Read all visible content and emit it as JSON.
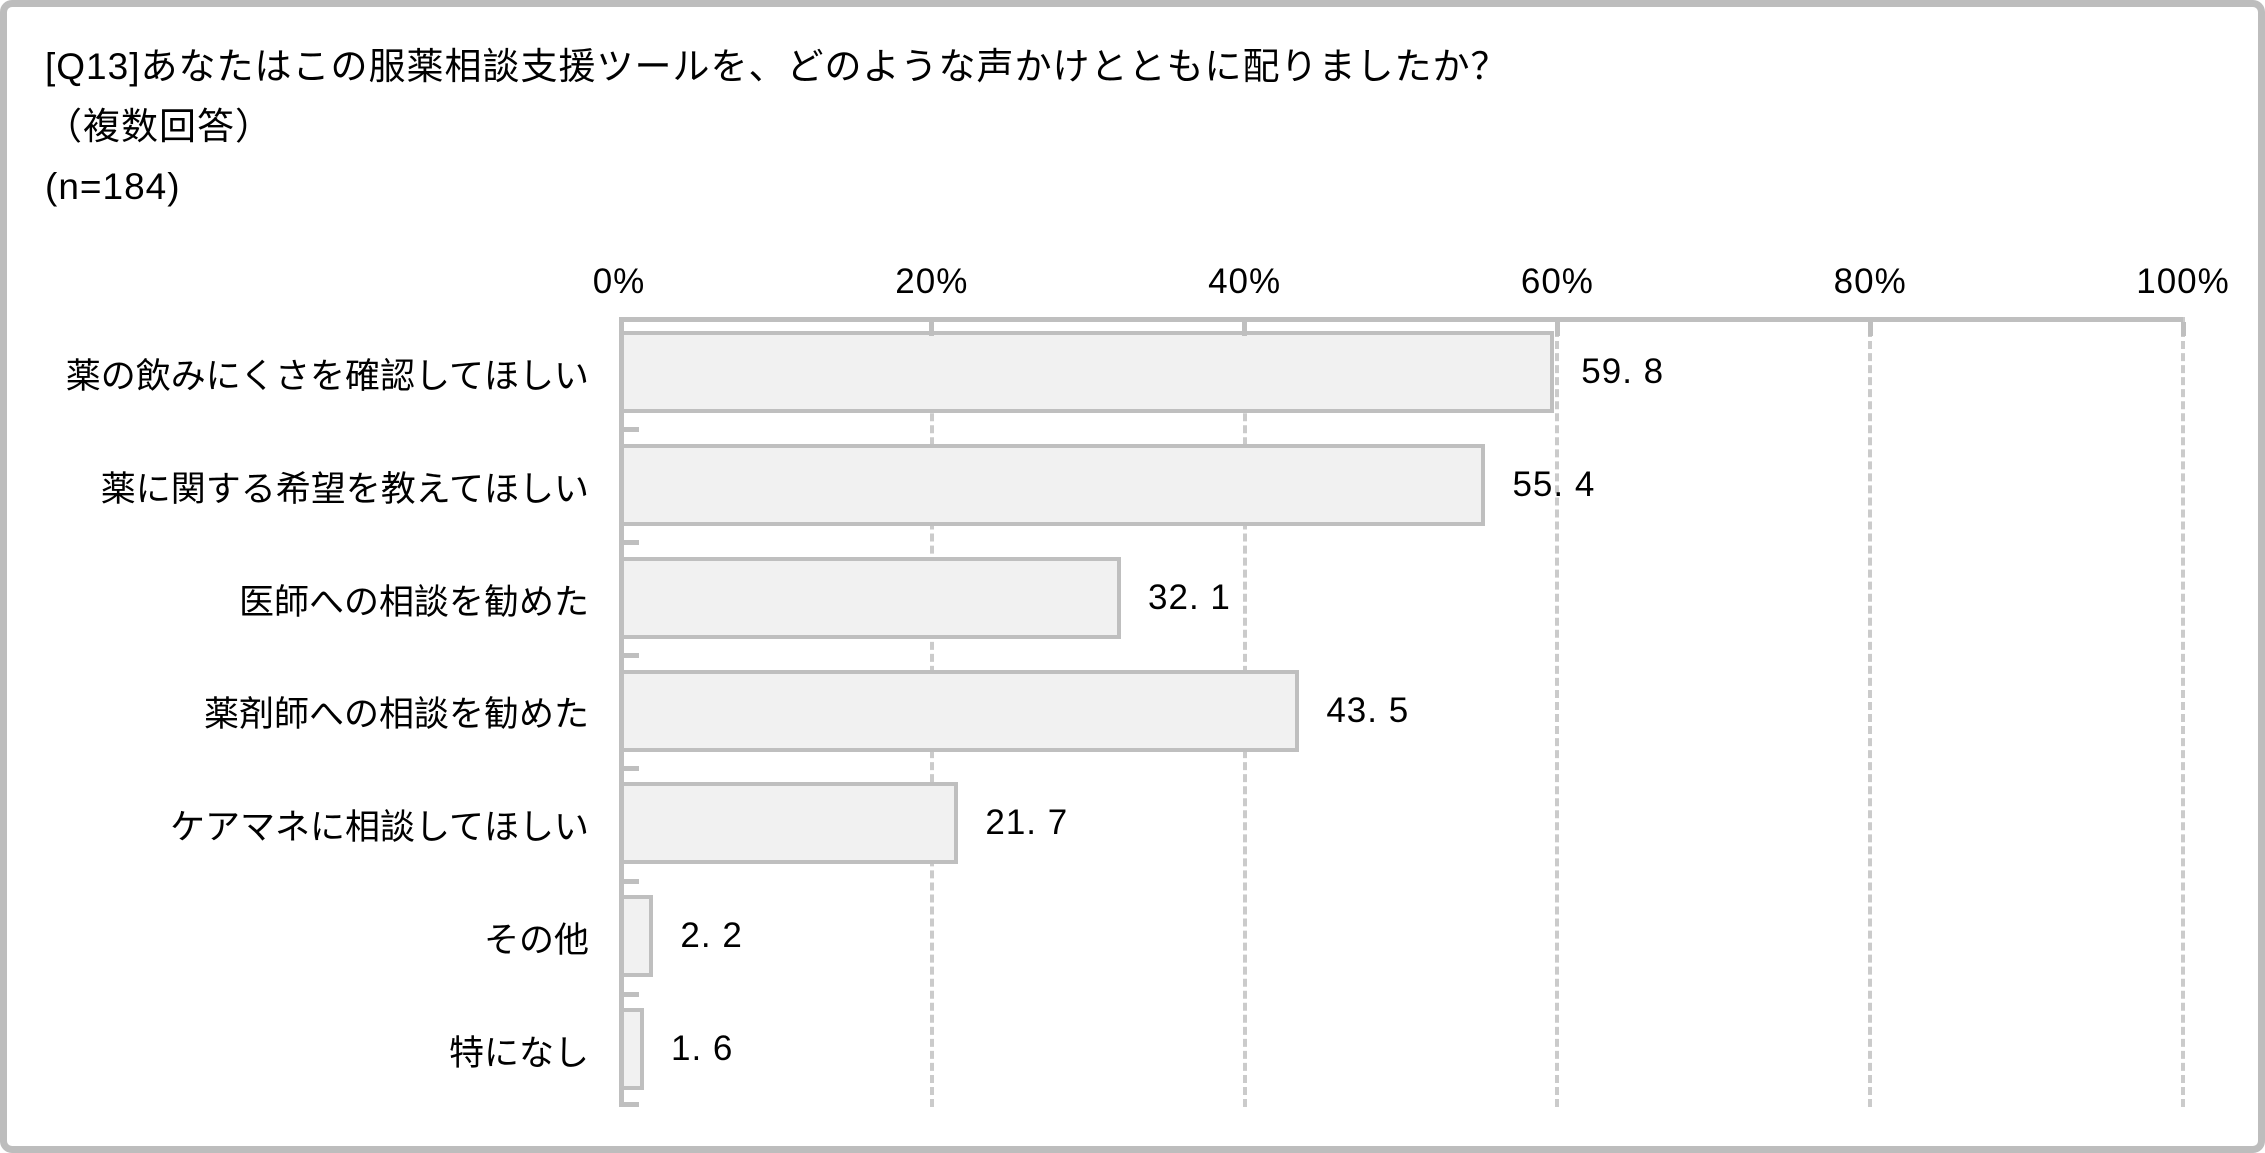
{
  "title": {
    "line1": "[Q13]あなたはこの服薬相談支援ツールを、どのような声かけとともに配りましたか？",
    "line2": "（複数回答）",
    "line3": "(n=184)"
  },
  "chart_data": {
    "type": "bar",
    "orientation": "horizontal",
    "title": "[Q13]あなたはこの服薬相談支援ツールを、どのような声かけとともに配りましたか？（複数回答）(n=184)",
    "n": 184,
    "categories": [
      "薬の飲みにくさを確認してほしい",
      "薬に関する希望を教えてほしい",
      "医師への相談を勧めた",
      "薬剤師への相談を勧めた",
      "ケアマネに相談してほしい",
      "その他",
      "特になし"
    ],
    "values": [
      59.8,
      55.4,
      32.1,
      43.5,
      21.7,
      2.2,
      1.6
    ],
    "value_labels": [
      "59. 8",
      "55. 4",
      "32. 1",
      "43. 5",
      "21. 7",
      "2. 2",
      "1. 6"
    ],
    "x_axis": {
      "position": "top",
      "min": 0,
      "max": 100,
      "tick_values": [
        0,
        20,
        40,
        60,
        80,
        100
      ],
      "tick_labels": [
        "0%",
        "20%",
        "40%",
        "60%",
        "80%",
        "100%"
      ]
    },
    "grid": {
      "vertical_dashed": true
    },
    "legend": "none",
    "colors": {
      "bar_fill": "#F1F1F1",
      "bar_border": "#BFBFBF",
      "axis_line": "#BFBFBF",
      "gridline": "#CBCBCB",
      "text": "#000000",
      "frame_border": "#BDBDBD",
      "background": "#FFFFFF"
    }
  }
}
